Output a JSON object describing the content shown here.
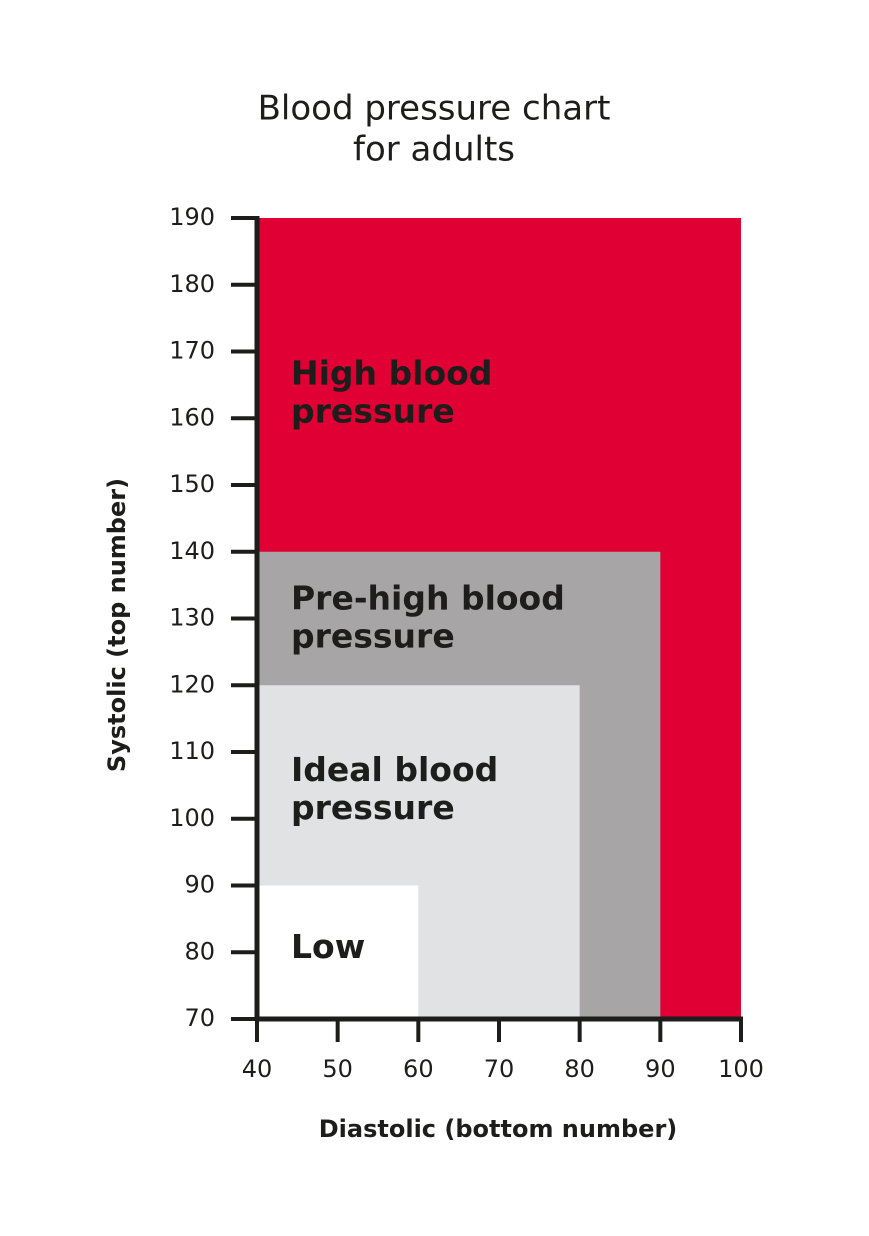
{
  "chart_data": {
    "type": "region",
    "title": [
      "Blood pressure chart",
      "for adults"
    ],
    "x_label": "Diastolic (bottom number)",
    "y_label": "Systolic (top number)",
    "xlim": [
      40,
      100
    ],
    "ylim": [
      70,
      190
    ],
    "xticks": [
      40,
      50,
      60,
      70,
      80,
      90,
      100
    ],
    "yticks": [
      70,
      80,
      90,
      100,
      110,
      120,
      130,
      140,
      150,
      160,
      170,
      180,
      190
    ],
    "regions": [
      {
        "label": [
          "High blood",
          "pressure"
        ],
        "color": "#e00034",
        "x": 100,
        "y": 190
      },
      {
        "label": [
          "Pre-high blood",
          "pressure"
        ],
        "color": "#a7a5a6",
        "x": 90,
        "y": 140
      },
      {
        "label": [
          "Ideal blood",
          "pressure"
        ],
        "color": "#e1e2e4",
        "x": 80,
        "y": 120
      },
      {
        "label": [
          "Low"
        ],
        "color": "#ffffff",
        "x": 60,
        "y": 90
      }
    ]
  }
}
